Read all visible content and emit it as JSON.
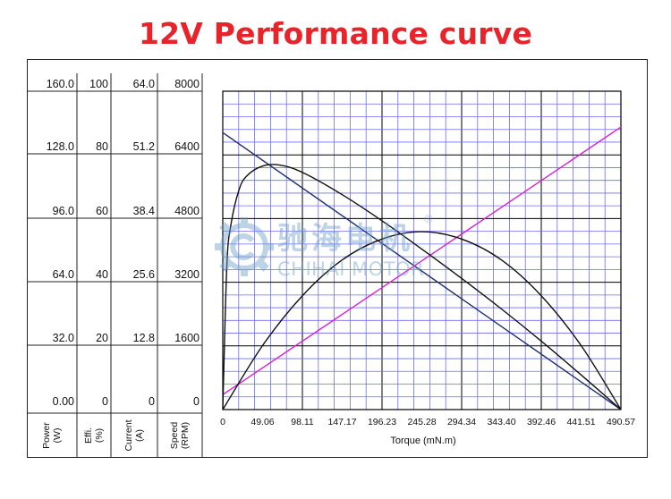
{
  "title": "12V Performance curve",
  "watermark": {
    "name_zh": "驰海电机",
    "name_en": "CHIHAI MOTOR",
    "registered": "®",
    "color": "#6f9ec9"
  },
  "colors": {
    "title": "#e8242a",
    "speed": "#1f2f6e",
    "current": "#1f2f6e",
    "power": "#111111",
    "efficiency": "#111111",
    "torque_line": "#d81ed2",
    "grid_minor": "#6e6ef0",
    "grid_major": "#000000"
  },
  "chart_data": {
    "type": "line",
    "xlabel": "Torque (mN.m)",
    "x_ticks": [
      "0",
      "49.06",
      "98.11",
      "147.17",
      "196.23",
      "245.28",
      "294.34",
      "343.40",
      "392.46",
      "441.51",
      "490.57"
    ],
    "xlim": [
      0,
      490.57
    ],
    "axes": [
      {
        "label": "Power (W)",
        "ticks": [
          "160.0",
          "128.0",
          "96.0",
          "64.0",
          "32.0",
          "0.00"
        ],
        "ylim": [
          0,
          160
        ]
      },
      {
        "label": "Effi. (%)",
        "ticks": [
          "100",
          "80",
          "60",
          "40",
          "20",
          "0"
        ],
        "ylim": [
          0,
          100
        ]
      },
      {
        "label": "Current (A)",
        "ticks": [
          "64.0",
          "51.2",
          "38.4",
          "25.6",
          "12.8",
          "0"
        ],
        "ylim": [
          0,
          64
        ]
      },
      {
        "label": "Speed (RPM)",
        "ticks": [
          "8000",
          "6400",
          "4800",
          "3200",
          "1600",
          "0"
        ],
        "ylim": [
          0,
          8000
        ]
      }
    ],
    "series": [
      {
        "key": "speed",
        "x": [
          0,
          490.57
        ],
        "y": [
          6960,
          0
        ]
      },
      {
        "key": "current",
        "x": [
          0,
          490.57
        ],
        "y": [
          3.0,
          56.8
        ]
      },
      {
        "key": "power",
        "x": [
          0,
          49.06,
          98.11,
          147.17,
          196.23,
          245.28,
          294.34,
          343.4,
          392.46,
          441.51,
          490.57
        ],
        "y": [
          0,
          32.2,
          57.2,
          75.2,
          85.7,
          89.4,
          85.7,
          75.2,
          57.2,
          32.2,
          0
        ]
      },
      {
        "key": "efficiency",
        "x": [
          0,
          5,
          10,
          20,
          30,
          49.06,
          70,
          98.11,
          147.17,
          196.23,
          245.28,
          294.34,
          343.4,
          392.46,
          441.51,
          490.57
        ],
        "y": [
          0,
          45,
          58,
          69,
          73.5,
          76.5,
          76.8,
          74.5,
          67.5,
          59.3,
          50.4,
          41.2,
          31.6,
          21.5,
          10.9,
          0
        ]
      }
    ],
    "grid": true
  }
}
